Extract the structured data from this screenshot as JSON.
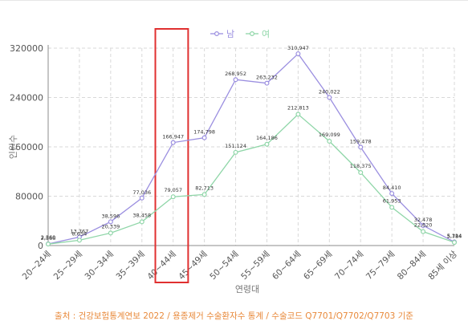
{
  "chart_data": {
    "type": "line",
    "categories": [
      "20~24세",
      "25~29세",
      "30~34세",
      "35~39세",
      "40~44세",
      "45~49세",
      "50~54세",
      "55~59세",
      "60~64세",
      "65~69세",
      "70~74세",
      "75~79세",
      "80~84세",
      "85세 이상"
    ],
    "xlabel": "연령대",
    "ylabel": "인원수",
    "ylim": [
      0,
      320000
    ],
    "yticks": [
      0,
      80000,
      160000,
      240000,
      320000
    ],
    "grid": true,
    "legend": "top-center",
    "series": [
      {
        "name": "남",
        "color": "#9b8fe0",
        "values": [
          2566,
          13767,
          38596,
          77036,
          166947,
          174798,
          268952,
          263232,
          310947,
          240022,
          159478,
          84410,
          32478,
          5784
        ],
        "labels": [
          "2,566",
          "13,767",
          "38,596",
          "77,036",
          "166,947",
          "174,798",
          "268,952",
          "263,232",
          "310,947",
          "240,022",
          "159,478",
          "84,410",
          "32,478",
          "5,784"
        ]
      },
      {
        "name": "여",
        "color": "#8fd6a8",
        "values": [
          2360,
          8654,
          20339,
          38458,
          79057,
          82713,
          151124,
          164186,
          212813,
          169099,
          118375,
          61953,
          22620,
          5114
        ],
        "labels": [
          "2,360",
          "8,654",
          "20,339",
          "38,458",
          "79,057",
          "82,713",
          "151,124",
          "164,186",
          "212,813",
          "169,099",
          "118,375",
          "61,953",
          "22,620",
          "5,114"
        ]
      }
    ],
    "highlight_category": "40~44세",
    "highlight_color": "#e03030"
  },
  "source_note": "출처 : 건강보험통계연보 2022 / 용종제거 수술환자수 통계 / 수술코드 Q7701/Q7702/Q7703 기준"
}
